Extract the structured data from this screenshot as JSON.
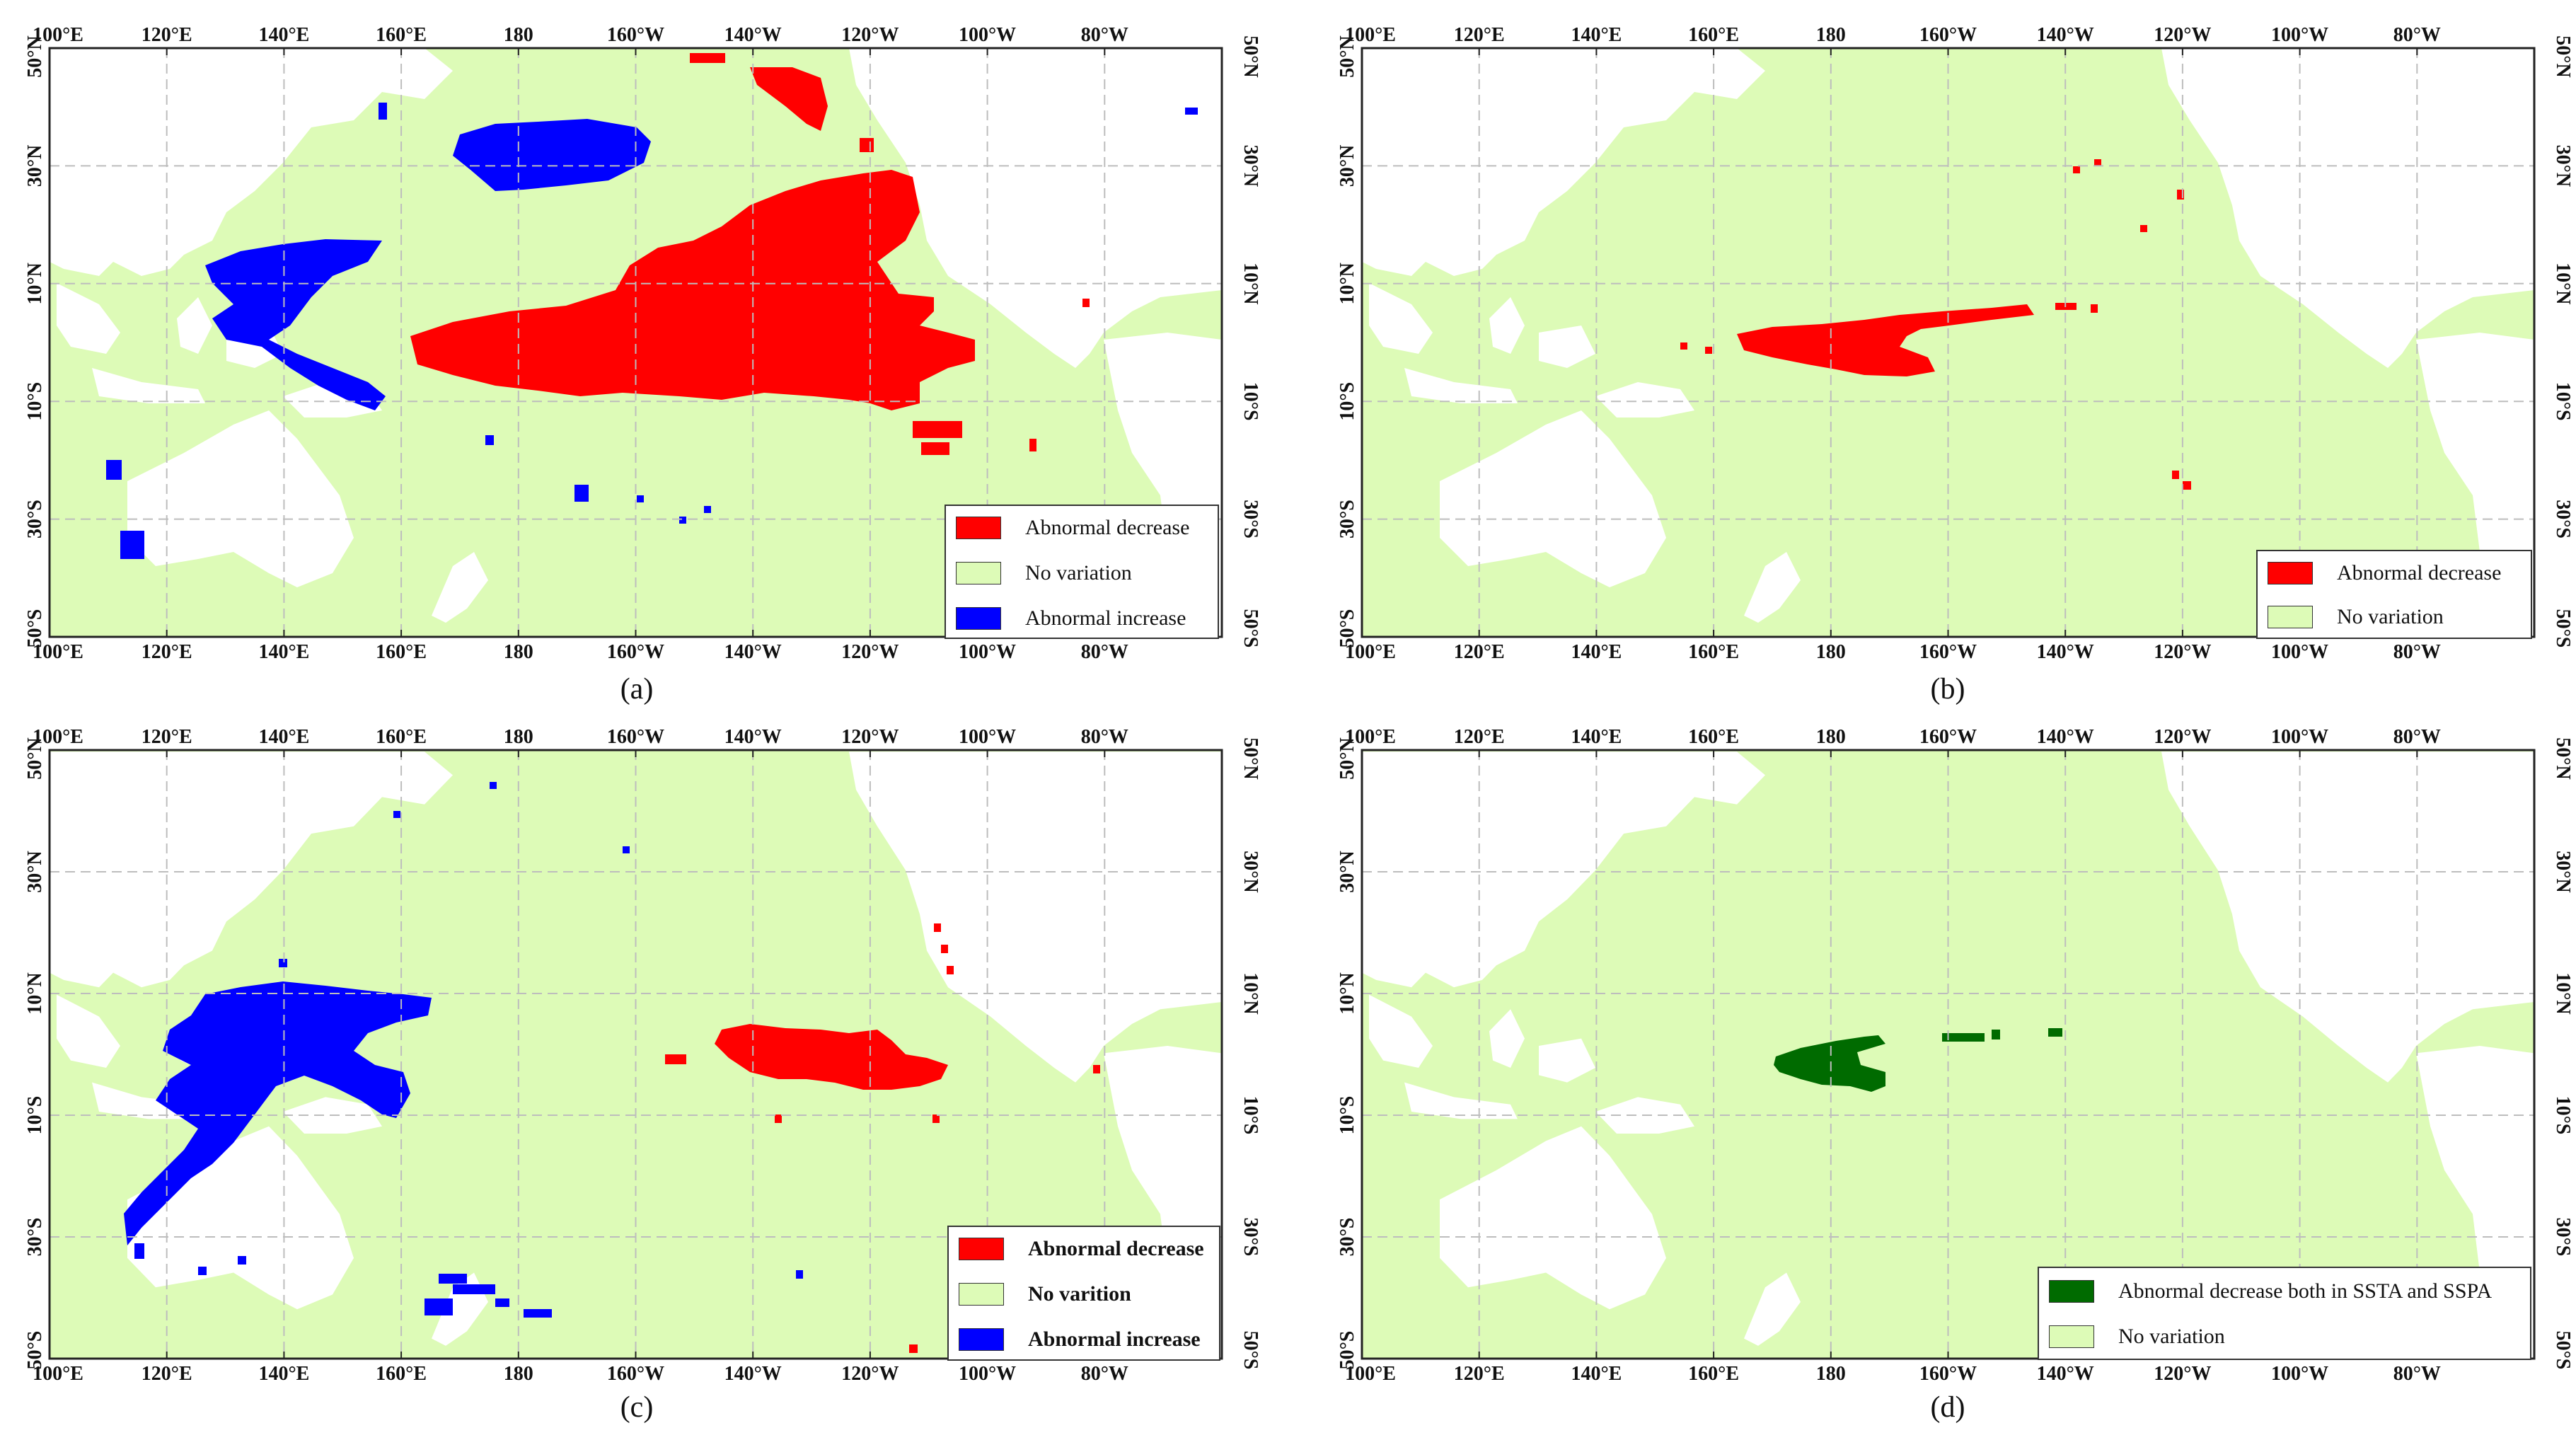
{
  "colors": {
    "no_variation": "#ddfbb7",
    "abnormal_decrease": "#ff0000",
    "abnormal_increase": "#0000ff",
    "both_decrease": "#006b00",
    "land": "#ffffff",
    "grid": "#bdbdbd"
  },
  "axis": {
    "lon_labels": [
      "100°E",
      "120°E",
      "140°E",
      "160°E",
      "180",
      "160°W",
      "140°W",
      "120°W",
      "100°W",
      "80°W"
    ],
    "lat_labels": [
      "50°N",
      "30°N",
      "10°N",
      "10°S",
      "30°S",
      "50°S"
    ]
  },
  "panels": [
    {
      "caption": "(a)",
      "legend": [
        {
          "label": "Abnormal decrease",
          "color": "#ff0000"
        },
        {
          "label": "No variation",
          "color": "#ddfbb7"
        },
        {
          "label": "Abnormal increase",
          "color": "#0000ff"
        }
      ]
    },
    {
      "caption": "(b)",
      "legend": [
        {
          "label": "Abnormal decrease",
          "color": "#ff0000"
        },
        {
          "label": "No variation",
          "color": "#ddfbb7"
        }
      ]
    },
    {
      "caption": "(c)",
      "legend": [
        {
          "label": "Abnormal decrease",
          "color": "#ff0000"
        },
        {
          "label": "No varition",
          "color": "#ddfbb7"
        },
        {
          "label": "Abnormal increase",
          "color": "#0000ff"
        }
      ]
    },
    {
      "caption": "(d)",
      "legend": [
        {
          "label": "Abnormal decrease both in SSTA and SSPA",
          "color": "#006b00"
        },
        {
          "label": "No variation",
          "color": "#ddfbb7"
        }
      ]
    }
  ]
}
